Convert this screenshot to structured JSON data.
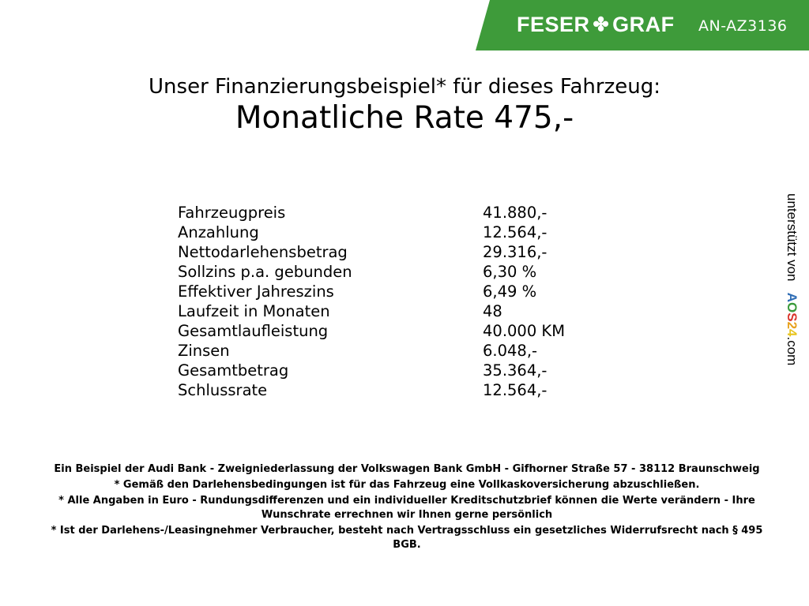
{
  "header": {
    "brand_left": "FESER",
    "brand_right": "GRAF",
    "vehicle_code": "AN-AZ3136",
    "brand_color": "#3e9b3a",
    "logo_icon": "clover-icon"
  },
  "intro": "Unser Finanzierungsbeispiel* für dieses Fahrzeug:",
  "monthly_rate": "Monatliche Rate 475,-",
  "table": [
    {
      "label": "Fahrzeugpreis",
      "value": "41.880,-"
    },
    {
      "label": "Anzahlung",
      "value": "12.564,-"
    },
    {
      "label": "Nettodarlehensbetrag",
      "value": "29.316,-"
    },
    {
      "label": "Sollzins p.a. gebunden",
      "value": "6,30 %"
    },
    {
      "label": "Effektiver Jahreszins",
      "value": "6,49 %"
    },
    {
      "label": "Laufzeit in Monaten",
      "value": "48"
    },
    {
      "label": "Gesamtlaufleistung",
      "value": "40.000 KM"
    },
    {
      "label": "Zinsen",
      "value": "6.048,-"
    },
    {
      "label": "Gesamtbetrag",
      "value": "35.364,-"
    },
    {
      "label": "Schlussrate",
      "value": "12.564,-"
    }
  ],
  "side": {
    "text": "unterstützt von",
    "logo": "AOS24",
    ".com": ".com"
  },
  "footer": [
    "Ein Beispiel der Audi Bank - Zweigniederlassung der Volkswagen Bank GmbH - Gifhorner Straße 57 - 38112 Braunschweig",
    "* Gemäß den Darlehensbedingungen ist für das Fahrzeug eine Vollkaskoversicherung abzuschließen.",
    "* Alle Angaben in Euro - Rundungsdifferenzen und ein individueller Kreditschutzbrief können die Werte verändern - Ihre Wunschrate errechnen wir Ihnen gerne persönlich",
    "* Ist der Darlehens-/Leasingnehmer Verbraucher, besteht nach Vertragsschluss ein gesetzliches Widerrufsrecht nach § 495 BGB."
  ]
}
